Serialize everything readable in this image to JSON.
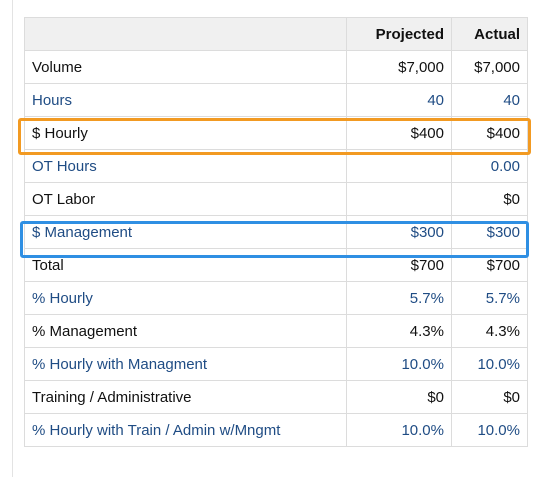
{
  "table": {
    "headers": {
      "label": "",
      "projected": "Projected",
      "actual": "Actual"
    },
    "rows": [
      {
        "label": "Volume",
        "projected": "$7,000",
        "actual": "$7,000",
        "style": "plain"
      },
      {
        "label": "Hours",
        "projected": "40",
        "actual": "40",
        "style": "link"
      },
      {
        "label": "$ Hourly",
        "projected": "$400",
        "actual": "$400",
        "style": "plain"
      },
      {
        "label": "OT Hours",
        "projected": "",
        "actual": "0.00",
        "style": "link"
      },
      {
        "label": "OT Labor",
        "projected": "",
        "actual": "$0",
        "style": "plain"
      },
      {
        "label": "$ Management",
        "projected": "$300",
        "actual": "$300",
        "style": "link"
      },
      {
        "label": "Total",
        "projected": "$700",
        "actual": "$700",
        "style": "plain"
      },
      {
        "label": "% Hourly",
        "projected": "5.7%",
        "actual": "5.7%",
        "style": "link"
      },
      {
        "label": "% Management",
        "projected": "4.3%",
        "actual": "4.3%",
        "style": "plain"
      },
      {
        "label": "% Hourly with Managment",
        "projected": "10.0%",
        "actual": "10.0%",
        "style": "link"
      },
      {
        "label": "Training / Administrative",
        "projected": "$0",
        "actual": "$0",
        "style": "plain"
      },
      {
        "label": "% Hourly with Train / Admin w/Mngmt",
        "projected": "10.0%",
        "actual": "10.0%",
        "style": "link"
      }
    ]
  },
  "highlights": [
    {
      "row": "$ Hourly",
      "color": "#f29a22"
    },
    {
      "row": "$ Management",
      "color": "#2f8fe3"
    }
  ],
  "colors": {
    "link_text": "#1f4c84",
    "plain_text": "#111111",
    "header_bg": "#f0f0f0",
    "grid": "#dcdcdc"
  }
}
